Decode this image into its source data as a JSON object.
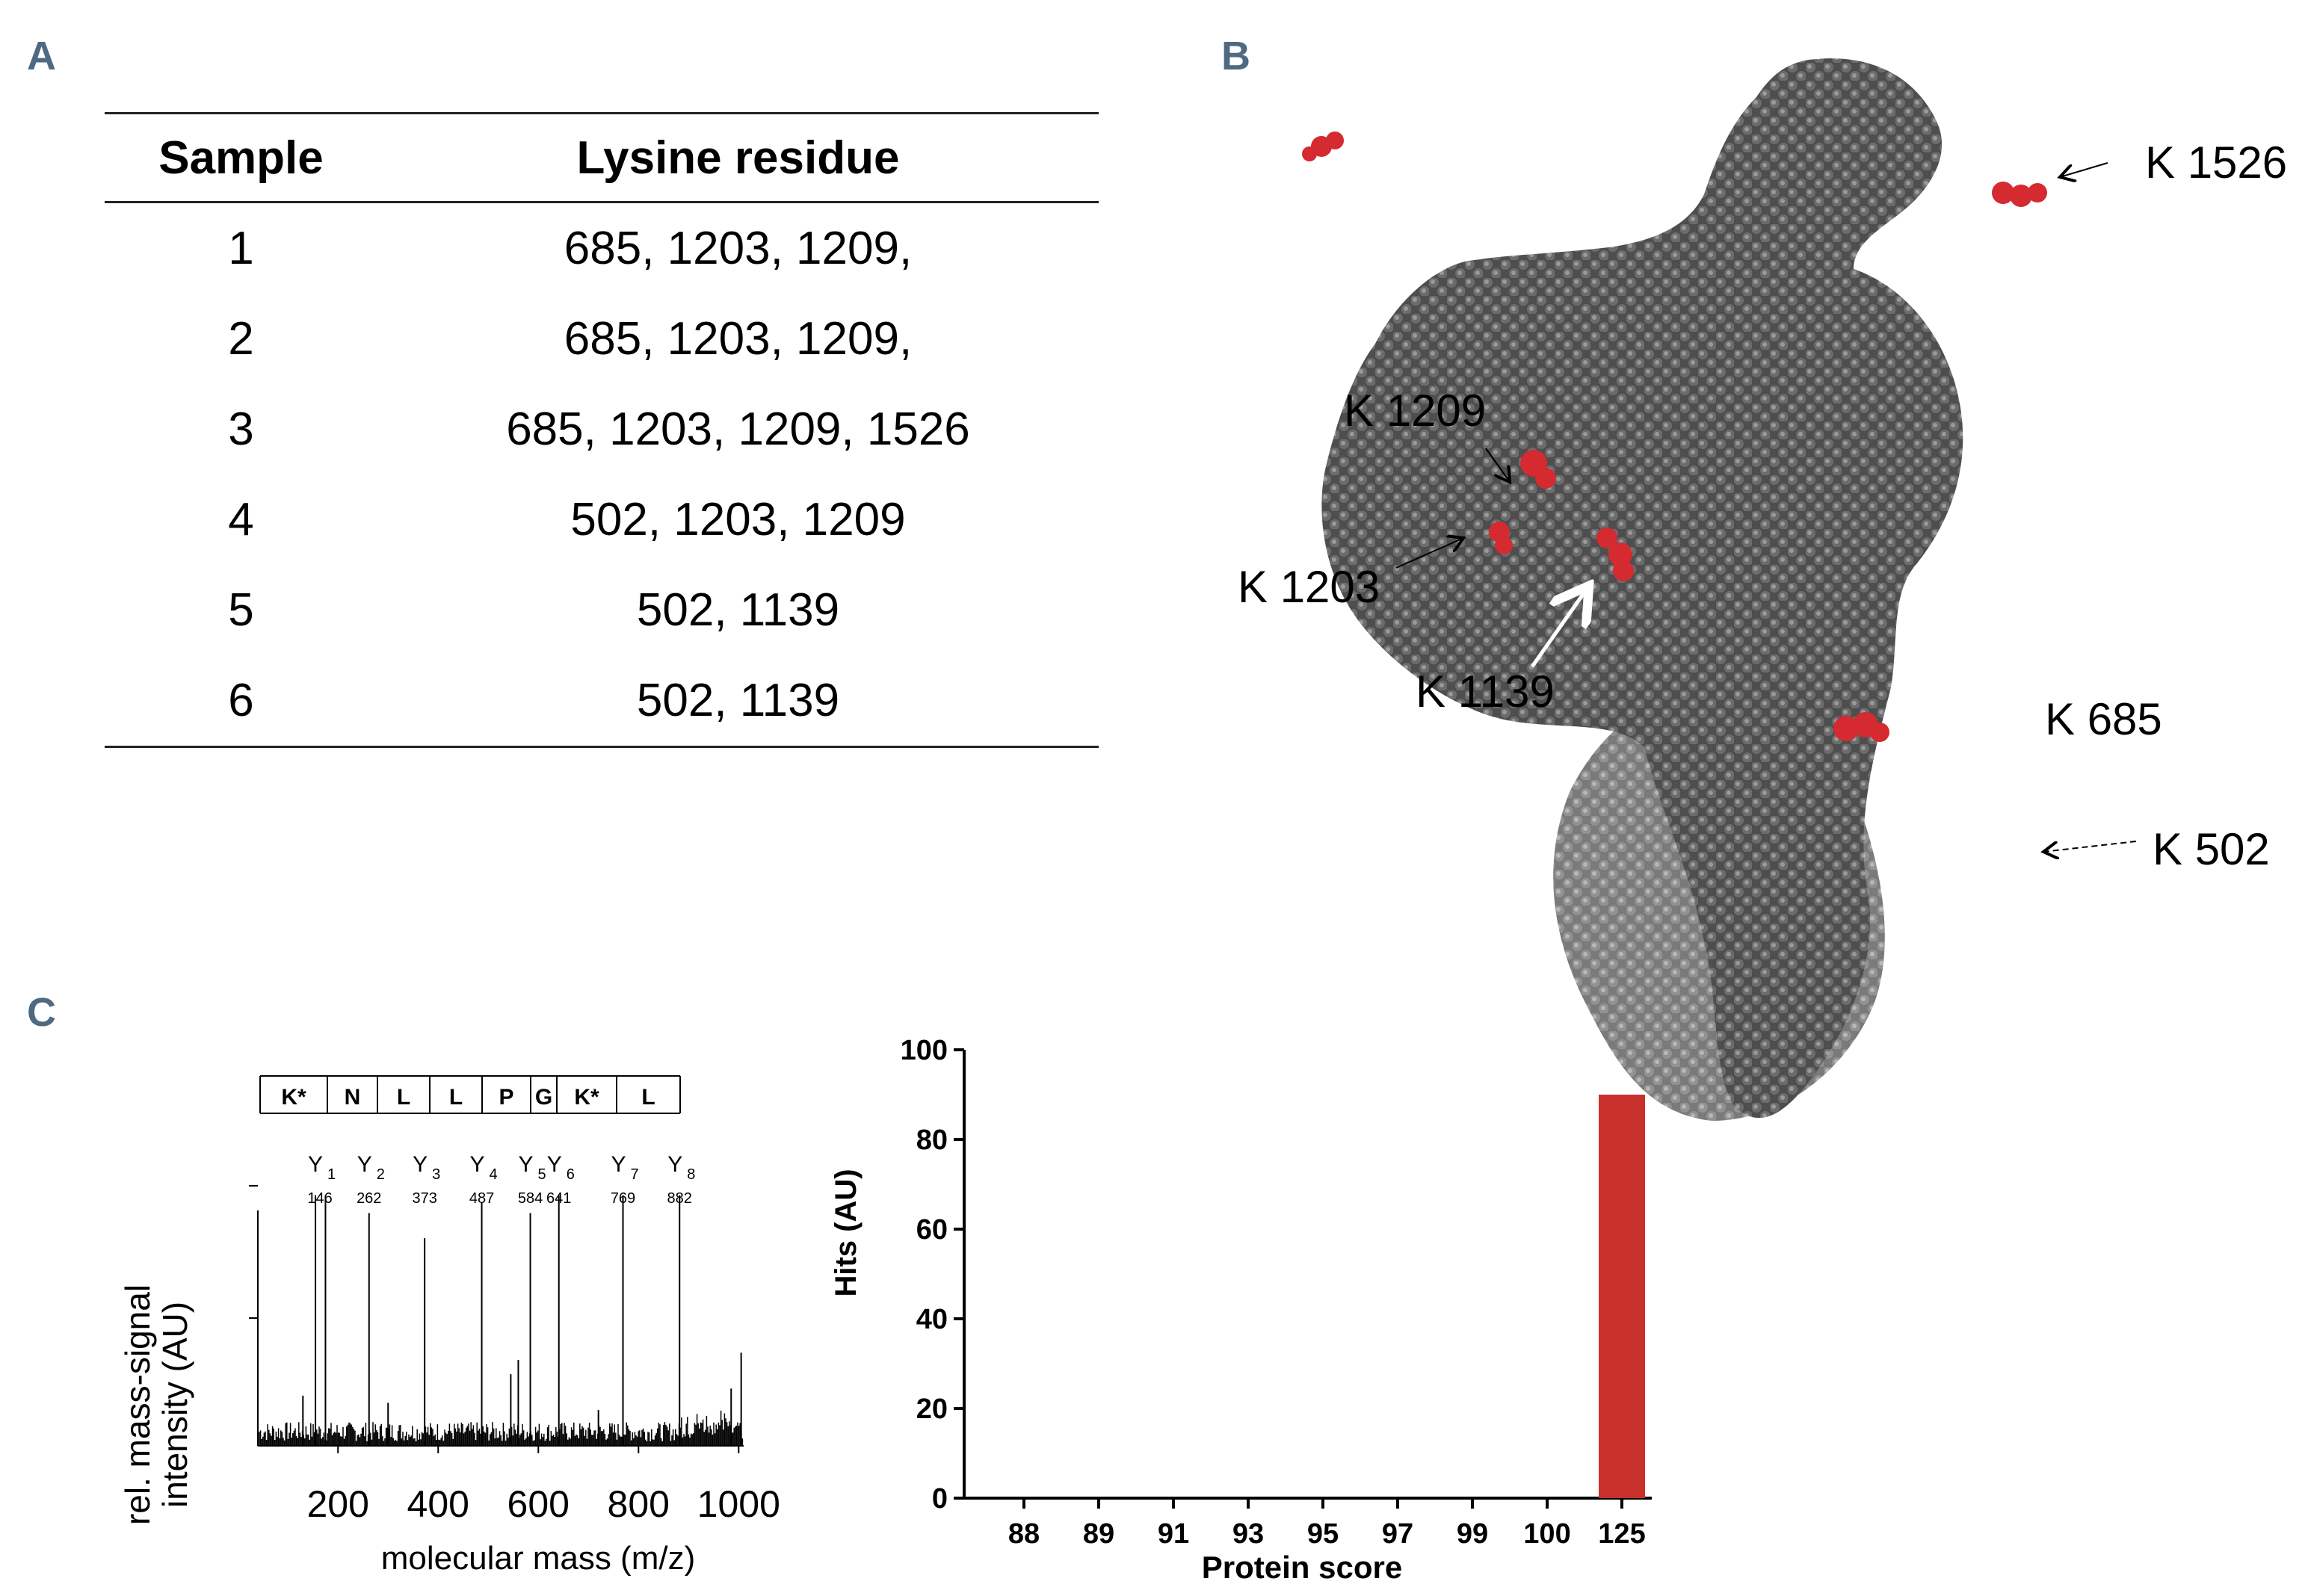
{
  "panel_labels": {
    "a": "A",
    "b": "B",
    "c": "C"
  },
  "table": {
    "headers": [
      "Sample",
      "Lysine residue"
    ],
    "rows": [
      {
        "sample": "1",
        "residues": "685, 1203, 1209,"
      },
      {
        "sample": "2",
        "residues": "685, 1203, 1209,"
      },
      {
        "sample": "3",
        "residues": "685, 1203, 1209, 1526"
      },
      {
        "sample": "4",
        "residues": "502, 1203, 1209"
      },
      {
        "sample": "5",
        "residues": "502, 1139"
      },
      {
        "sample": "6",
        "residues": "502, 1139"
      }
    ]
  },
  "structure": {
    "labels": [
      "K 1526",
      "K 1209",
      "K 1203",
      "K 1139",
      "K 685",
      "K 502"
    ],
    "colors": {
      "atom": "#5c5c5c",
      "atom_light": "#8a8a8a",
      "highlight": "#d42a30"
    }
  },
  "chart_data": [
    {
      "type": "line",
      "title": "",
      "xlabel": "molecular mass  (m/z)",
      "ylabel_lines": [
        "rel. mass-signal",
        "intensity (AU)"
      ],
      "xlim": [
        40,
        1010
      ],
      "xticks": [
        200,
        400,
        600,
        800,
        1000
      ],
      "sequence": [
        "K*",
        "N",
        "L",
        "L",
        "P",
        "G",
        "K*",
        "L"
      ],
      "ions": [
        {
          "label": "Y",
          "sub": "1",
          "mz": "146",
          "x": 146
        },
        {
          "label": "Y",
          "sub": "2",
          "mz": "262",
          "x": 262
        },
        {
          "label": "Y",
          "sub": "3",
          "mz": "373",
          "x": 373
        },
        {
          "label": "Y",
          "sub": "4",
          "mz": "487",
          "x": 487
        },
        {
          "label": "Y",
          "sub": "5",
          "mz": "584",
          "x": 584
        },
        {
          "label": "Y",
          "sub": "6",
          "mz": "641",
          "x": 641
        },
        {
          "label": "Y",
          "sub": "7",
          "mz": "769",
          "x": 769
        },
        {
          "label": "Y",
          "sub": "8",
          "mz": "882",
          "x": 882
        }
      ],
      "peaks": [
        {
          "x": 155,
          "y": 0.7
        },
        {
          "x": 175,
          "y": 0.7
        },
        {
          "x": 262,
          "y": 0.65
        },
        {
          "x": 373,
          "y": 0.58
        },
        {
          "x": 487,
          "y": 0.68
        },
        {
          "x": 584,
          "y": 0.65
        },
        {
          "x": 641,
          "y": 0.7
        },
        {
          "x": 769,
          "y": 0.7
        },
        {
          "x": 882,
          "y": 0.7
        },
        {
          "x": 130,
          "y": 0.14
        },
        {
          "x": 300,
          "y": 0.12
        },
        {
          "x": 545,
          "y": 0.2
        },
        {
          "x": 560,
          "y": 0.24
        },
        {
          "x": 720,
          "y": 0.1
        },
        {
          "x": 985,
          "y": 0.16
        },
        {
          "x": 1005,
          "y": 0.26
        }
      ]
    },
    {
      "type": "bar",
      "categories": [
        "88",
        "89",
        "91",
        "93",
        "95",
        "97",
        "99",
        "100",
        "125"
      ],
      "values": [
        0,
        0,
        0,
        0,
        0,
        0,
        0,
        0,
        90
      ],
      "xlabel": "Protein score",
      "ylabel": "Hits (AU)",
      "ylim": [
        0,
        100
      ],
      "yticks": [
        0,
        20,
        40,
        60,
        80,
        100
      ],
      "bar_color": "#c8312b"
    }
  ]
}
